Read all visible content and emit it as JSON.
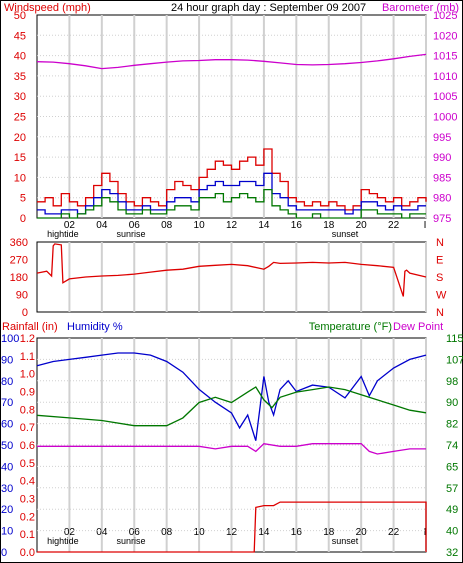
{
  "colors": {
    "red": "#dd0000",
    "blue": "#0000cc",
    "green": "#007700",
    "magenta": "#cc00cc",
    "grid": "#d0d0d0",
    "frame": "#000000"
  },
  "x_axis": {
    "tick_labels": [
      "02",
      "04",
      "06",
      "08",
      "10",
      "12",
      "14",
      "16",
      "18",
      "20",
      "22",
      "I"
    ],
    "markers": [
      {
        "text": "hightide",
        "at": 1.6
      },
      {
        "text": "sunrise",
        "at": 5.8
      },
      {
        "text": "sunset",
        "at": 19.0
      }
    ]
  },
  "chart_data": [
    {
      "type": "line",
      "title": "24 hour graph day : September 09 2007",
      "left_axis": {
        "label": "Windspeed (mph)",
        "range": [
          0,
          50
        ],
        "ticks": [
          0,
          5,
          10,
          15,
          20,
          25,
          30,
          35,
          40,
          45,
          50
        ]
      },
      "right_axis": {
        "label": "Barometer (mb)",
        "range": [
          975,
          1025
        ],
        "ticks": [
          975,
          980,
          985,
          990,
          995,
          1000,
          1005,
          1010,
          1015,
          1020,
          1025
        ]
      },
      "grid": true,
      "series": [
        {
          "color": "#dd0000",
          "axis": "left",
          "x": [
            0.0,
            0.5,
            1.0,
            1.5,
            2.0,
            2.5,
            3.0,
            3.5,
            4.0,
            4.5,
            5.0,
            5.5,
            6.0,
            6.5,
            7.0,
            7.5,
            8.0,
            8.5,
            9.0,
            9.5,
            10.0,
            10.5,
            11.0,
            11.5,
            12.0,
            12.5,
            13.0,
            13.5,
            14.0,
            14.5,
            15.0,
            15.5,
            16.0,
            16.5,
            17.0,
            17.5,
            18.0,
            18.5,
            19.0,
            19.5,
            20.0,
            20.5,
            21.0,
            21.5,
            22.0,
            22.5,
            23.0,
            23.5,
            24.0
          ],
          "y": [
            4,
            5,
            3,
            6,
            4,
            3,
            5,
            8,
            11,
            9,
            6,
            4,
            3,
            5,
            4,
            3,
            7,
            9,
            8,
            7,
            10,
            12,
            14,
            13,
            12,
            14,
            15,
            13,
            17,
            11,
            9,
            5,
            4,
            3,
            4,
            3,
            4,
            3,
            2,
            3,
            7,
            6,
            5,
            4,
            5,
            3,
            4,
            5,
            4
          ]
        },
        {
          "color": "#0000cc",
          "axis": "left",
          "x": [
            0.0,
            0.5,
            1.0,
            1.5,
            2.0,
            2.5,
            3.0,
            3.5,
            4.0,
            4.5,
            5.0,
            5.5,
            6.0,
            6.5,
            7.0,
            7.5,
            8.0,
            8.5,
            9.0,
            9.5,
            10.0,
            10.5,
            11.0,
            11.5,
            12.0,
            12.5,
            13.0,
            13.5,
            14.0,
            14.5,
            15.0,
            15.5,
            16.0,
            16.5,
            17.0,
            17.5,
            18.0,
            18.5,
            19.0,
            19.5,
            20.0,
            20.5,
            21.0,
            21.5,
            22.0,
            22.5,
            23.0,
            23.5,
            24.0
          ],
          "y": [
            2,
            1,
            1,
            2,
            2,
            1,
            3,
            5,
            7,
            6,
            4,
            2,
            2,
            3,
            2,
            2,
            4,
            5,
            5,
            4,
            7,
            8,
            9,
            8,
            8,
            9,
            9,
            8,
            11,
            6,
            5,
            3,
            2,
            2,
            2,
            2,
            2,
            2,
            1,
            2,
            4,
            4,
            3,
            2,
            3,
            2,
            2,
            3,
            3
          ]
        },
        {
          "color": "#007700",
          "axis": "left",
          "x": [
            0.0,
            0.5,
            1.0,
            1.5,
            2.0,
            2.5,
            3.0,
            3.5,
            4.0,
            4.5,
            5.0,
            5.5,
            6.0,
            6.5,
            7.0,
            7.5,
            8.0,
            8.5,
            9.0,
            9.5,
            10.0,
            10.5,
            11.0,
            11.5,
            12.0,
            12.5,
            13.0,
            13.5,
            14.0,
            14.5,
            15.0,
            15.5,
            16.0,
            16.5,
            17.0,
            17.5,
            18.0,
            18.5,
            19.0,
            19.5,
            20.0,
            20.5,
            21.0,
            21.5,
            22.0,
            22.5,
            23.0,
            23.5,
            24.0
          ],
          "y": [
            0,
            0,
            0,
            1,
            0,
            1,
            2,
            3,
            5,
            4,
            2,
            1,
            1,
            2,
            1,
            1,
            2,
            3,
            3,
            2,
            5,
            5,
            6,
            4,
            5,
            6,
            5,
            4,
            7,
            3,
            2,
            1,
            0,
            0,
            1,
            0,
            0,
            0,
            0,
            0,
            2,
            2,
            1,
            1,
            1,
            0,
            1,
            1,
            1
          ]
        },
        {
          "color": "#cc00cc",
          "axis": "right",
          "x": [
            0,
            1,
            2,
            3,
            4,
            5,
            6,
            7,
            8,
            9,
            10,
            11,
            12,
            13,
            14,
            15,
            16,
            17,
            18,
            19,
            20,
            21,
            22,
            23,
            24
          ],
          "y": [
            1013.5,
            1013.4,
            1013.0,
            1012.5,
            1011.8,
            1012.1,
            1012.6,
            1013.0,
            1013.4,
            1013.7,
            1013.8,
            1014.0,
            1014.0,
            1013.9,
            1013.6,
            1013.2,
            1012.8,
            1012.7,
            1012.8,
            1013.0,
            1013.3,
            1013.7,
            1014.2,
            1014.8,
            1015.3
          ]
        }
      ]
    },
    {
      "type": "line",
      "left_axis": {
        "label": "",
        "range": [
          0,
          360
        ],
        "ticks": [
          0,
          90,
          180,
          270,
          360
        ]
      },
      "right_axis": {
        "labels": [
          "N",
          "W",
          "S",
          "E",
          "N"
        ]
      },
      "series": [
        {
          "name": "Wind direction",
          "color": "#dd0000",
          "axis": "left",
          "x": [
            0.0,
            0.6,
            0.9,
            1.0,
            1.1,
            1.5,
            1.6,
            2,
            3,
            4,
            5,
            6,
            7,
            8,
            9,
            10,
            11,
            12,
            13,
            14,
            14.3,
            14.6,
            15,
            16,
            17,
            18,
            19,
            20,
            21,
            22,
            22.6,
            22.7,
            22.8,
            23,
            24
          ],
          "y": [
            200,
            210,
            185,
            340,
            350,
            345,
            150,
            170,
            180,
            185,
            188,
            195,
            205,
            215,
            220,
            235,
            240,
            245,
            238,
            220,
            235,
            255,
            250,
            252,
            255,
            252,
            255,
            245,
            238,
            230,
            80,
            210,
            215,
            200,
            180
          ]
        }
      ]
    },
    {
      "type": "line",
      "left_axis": {
        "labels": [
          "Rainfall (in)",
          "Humidity %"
        ],
        "ticks_inner": [
          0.0,
          0.1,
          0.2,
          0.3,
          0.4,
          0.5,
          0.6,
          0.7,
          0.8,
          0.9,
          1.0,
          1.1,
          1.2
        ],
        "ticks_outer": [
          0,
          10,
          20,
          30,
          40,
          50,
          60,
          70,
          80,
          90,
          100
        ],
        "range": [
          0,
          100
        ]
      },
      "right_axis": {
        "labels": [
          "Temperature (°F)",
          "Dew Point"
        ],
        "ticks": [
          32,
          40,
          49,
          57,
          65,
          74,
          82,
          90,
          98,
          107,
          115
        ],
        "range": [
          32,
          115
        ]
      },
      "series": [
        {
          "name": "Humidity",
          "color": "#0000cc",
          "axis": "left",
          "x": [
            0,
            1,
            2,
            3,
            4,
            5,
            6,
            7,
            8,
            9,
            10,
            11,
            12,
            12.5,
            13,
            13.5,
            14,
            14.3,
            14.6,
            15,
            15.5,
            16,
            17,
            18,
            19,
            20,
            20.5,
            21,
            22,
            23,
            24
          ],
          "y": [
            87,
            89,
            90,
            91,
            92,
            93,
            93,
            92,
            89,
            84,
            76,
            70,
            65,
            58,
            64,
            52,
            82,
            70,
            64,
            76,
            80,
            75,
            78,
            77,
            72,
            82,
            73,
            80,
            86,
            90,
            92
          ]
        },
        {
          "name": "Temperature",
          "color": "#007700",
          "axis": "right",
          "x": [
            0,
            2,
            4,
            6,
            8,
            9,
            10,
            11,
            12,
            13,
            13.5,
            14,
            14.5,
            15,
            16,
            17,
            18,
            19,
            20,
            21,
            22,
            23,
            24
          ],
          "y": [
            85,
            84,
            83,
            81,
            81,
            84,
            90,
            92,
            90,
            94,
            96,
            91,
            88,
            92,
            94,
            95,
            96,
            95,
            93,
            91,
            89,
            87,
            86
          ]
        },
        {
          "name": "Dew Point",
          "color": "#cc00cc",
          "axis": "right",
          "x": [
            0,
            2,
            4,
            6,
            8,
            10,
            11,
            12,
            13,
            13.5,
            14,
            15,
            16,
            17,
            18,
            19,
            20,
            20.5,
            21,
            22,
            23,
            24
          ],
          "y": [
            73,
            73,
            73,
            73,
            73,
            73,
            72,
            73,
            73,
            71,
            74,
            73,
            73,
            74,
            74,
            74,
            74,
            71,
            70,
            71,
            72,
            72
          ]
        },
        {
          "name": "Rainfall",
          "color": "#dd0000",
          "axis": "inner",
          "x": [
            0,
            13.4,
            13.5,
            14.0,
            14.6,
            15.0,
            24.0,
            24.0
          ],
          "y": [
            0,
            0,
            0.25,
            0.26,
            0.26,
            0.28,
            0.28,
            0
          ]
        }
      ]
    }
  ]
}
